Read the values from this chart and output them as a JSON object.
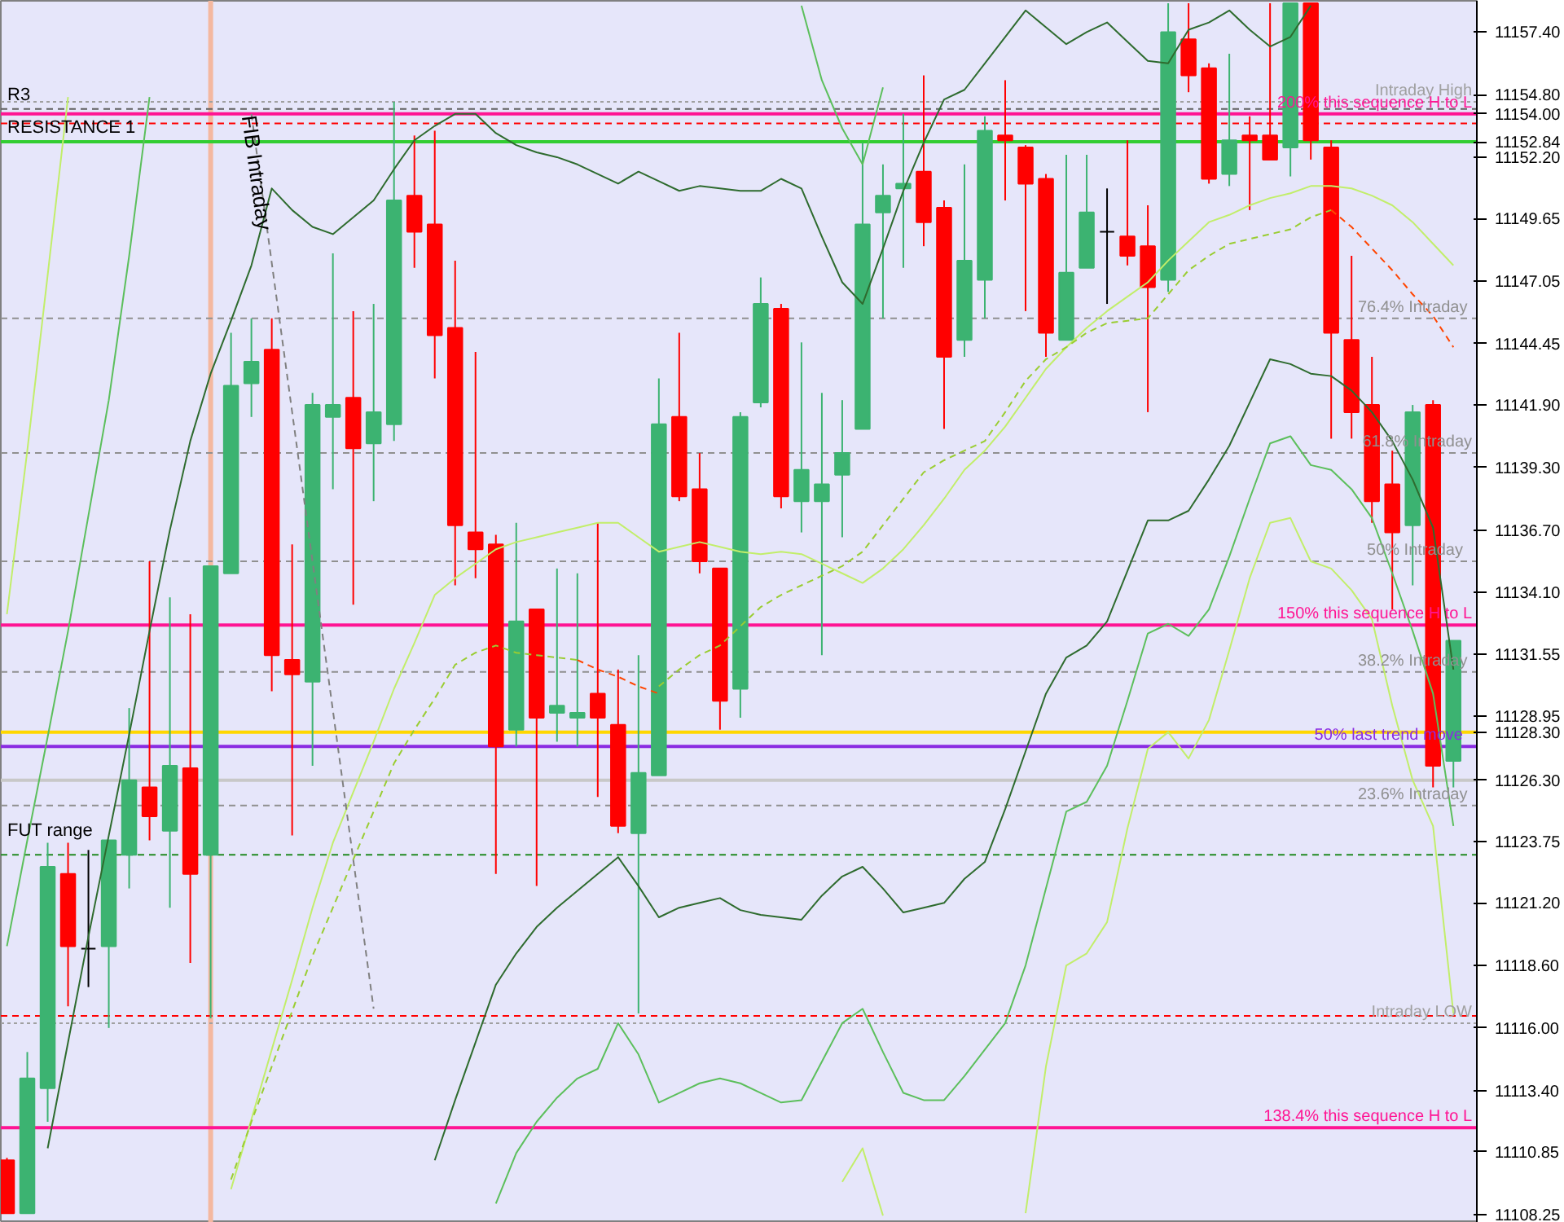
{
  "chart_data": {
    "type": "candlestick",
    "categories": [
      null,
      null,
      null,
      null,
      null,
      null,
      null,
      null,
      null,
      null,
      null,
      null,
      null,
      null,
      null,
      null,
      null,
      null,
      null,
      null,
      null,
      null,
      null,
      null,
      null,
      null,
      null,
      null,
      null,
      null,
      null,
      null,
      null,
      null,
      null,
      null,
      null,
      null,
      null,
      null,
      null,
      null,
      null,
      null,
      null,
      null,
      null,
      null,
      null,
      null,
      null,
      null,
      null,
      null,
      null,
      null,
      null,
      null,
      null,
      null,
      null,
      null,
      null,
      null,
      null,
      null,
      null,
      null,
      null,
      null,
      null,
      null
    ],
    "ohlc": [
      [
        11110.5,
        11110.6,
        11108.3,
        11108.3
      ],
      [
        11108.3,
        11115.0,
        11108.3,
        11113.9
      ],
      [
        11113.5,
        11123.7,
        11112.1,
        11122.7
      ],
      [
        11122.4,
        11123.7,
        11116.9,
        11119.4
      ],
      [
        11119.3,
        11123.4,
        11117.7,
        11119.3
      ],
      [
        11119.4,
        11123.8,
        11116.0,
        11123.8
      ],
      [
        11123.2,
        11129.3,
        11121.8,
        11126.3
      ],
      [
        11126.0,
        11135.4,
        11123.8,
        11124.8
      ],
      [
        11124.2,
        11133.9,
        11121.0,
        11126.9
      ],
      [
        11126.8,
        11133.2,
        11118.7,
        11122.4
      ],
      [
        11123.2,
        11135.2,
        11116.4,
        11135.2
      ],
      [
        11134.9,
        11144.9,
        11134.9,
        11142.7
      ],
      [
        11142.8,
        11145.5,
        11141.4,
        11143.7
      ],
      [
        11144.2,
        11145.5,
        11130.0,
        11131.5
      ],
      [
        11131.3,
        11136.1,
        11124.0,
        11130.7
      ],
      [
        11130.4,
        11142.4,
        11126.9,
        11141.9
      ],
      [
        11141.4,
        11148.2,
        11138.4,
        11141.9
      ],
      [
        11142.2,
        11145.8,
        11133.6,
        11140.1
      ],
      [
        11140.3,
        11146.1,
        11137.9,
        11141.6
      ],
      [
        11141.1,
        11154.5,
        11140.4,
        11150.4
      ],
      [
        11150.6,
        11153.1,
        11147.6,
        11149.1
      ],
      [
        11149.4,
        11153.3,
        11143.0,
        11144.8
      ],
      [
        11145.1,
        11147.9,
        11134.4,
        11136.9
      ],
      [
        11136.6,
        11144.1,
        11134.7,
        11135.9
      ],
      [
        11136.1,
        11136.5,
        11122.4,
        11127.7
      ],
      [
        11128.4,
        11137.0,
        11127.7,
        11132.9
      ],
      [
        11133.4,
        11133.4,
        11121.9,
        11128.9
      ],
      [
        11129.1,
        11135.1,
        11127.9,
        11129.4
      ],
      [
        11128.9,
        11134.9,
        11127.7,
        11129.1
      ],
      [
        11129.9,
        11137.0,
        11125.6,
        11128.9
      ],
      [
        11128.6,
        11130.9,
        11124.1,
        11124.4
      ],
      [
        11124.1,
        11131.5,
        11116.6,
        11126.6
      ],
      [
        11126.5,
        11143.0,
        11126.5,
        11141.1
      ],
      [
        11141.4,
        11144.9,
        11137.9,
        11138.1
      ],
      [
        11138.4,
        11139.9,
        11134.9,
        11135.4
      ],
      [
        11135.1,
        11135.1,
        11128.4,
        11129.6
      ],
      [
        11130.1,
        11141.6,
        11128.9,
        11141.4
      ],
      [
        11142.0,
        11147.2,
        11141.8,
        11146.1
      ],
      [
        11145.9,
        11146.1,
        11137.6,
        11138.1
      ],
      [
        11137.9,
        11144.5,
        11136.6,
        11139.2
      ],
      [
        11137.9,
        11142.4,
        11131.5,
        11138.6
      ],
      [
        11139.0,
        11142.1,
        11136.4,
        11139.9
      ],
      [
        11140.9,
        11152.8,
        11140.9,
        11149.4
      ],
      [
        11149.9,
        11151.9,
        11145.5,
        11150.6
      ],
      [
        11150.9,
        11154.0,
        11147.6,
        11151.1
      ],
      [
        11151.6,
        11155.6,
        11148.5,
        11149.5
      ],
      [
        11150.1,
        11150.4,
        11140.9,
        11143.9
      ],
      [
        11144.6,
        11151.9,
        11143.9,
        11147.9
      ],
      [
        11147.1,
        11153.9,
        11145.5,
        11153.3
      ],
      [
        11153.1,
        11155.4,
        11150.4,
        11152.9
      ],
      [
        11152.6,
        11152.7,
        11145.8,
        11151.1
      ],
      [
        11151.3,
        11151.5,
        11143.9,
        11144.9
      ],
      [
        11144.6,
        11152.3,
        11144.6,
        11147.4
      ],
      [
        11147.6,
        11152.3,
        11147.6,
        11149.9
      ],
      [
        11149.1,
        11150.9,
        11146.1,
        11149.1
      ],
      [
        11148.9,
        11152.9,
        11147.7,
        11148.1
      ],
      [
        11148.5,
        11150.2,
        11141.6,
        11146.8
      ],
      [
        11147.1,
        11158.6,
        11146.6,
        11157.4
      ],
      [
        11157.1,
        11158.6,
        11154.9,
        11155.6
      ],
      [
        11155.9,
        11156.1,
        11151.1,
        11151.3
      ],
      [
        11151.5,
        11156.5,
        11151.0,
        11152.9
      ],
      [
        11153.1,
        11153.9,
        11150.0,
        11152.9
      ],
      [
        11153.1,
        11158.6,
        11152.1,
        11152.1
      ],
      [
        11152.6,
        11158.6,
        11151.4,
        11158.6
      ],
      [
        11158.6,
        11158.6,
        11152.1,
        11152.9
      ],
      [
        11152.6,
        11152.9,
        11140.5,
        11144.9
      ],
      [
        11144.6,
        11148.1,
        11140.5,
        11141.6
      ],
      [
        11141.9,
        11143.9,
        11137.0,
        11137.9
      ],
      [
        11138.6,
        11140.0,
        11133.4,
        11136.6
      ],
      [
        11136.9,
        11141.9,
        11134.4,
        11141.6
      ],
      [
        11141.9,
        11142.1,
        11126.0,
        11126.9
      ],
      [
        11127.1,
        11132.1,
        11126.0,
        11132.1
      ]
    ],
    "colors": [
      "#ff0000",
      "#3cb371",
      "#3cb371",
      "#ff0000",
      "#000000",
      "#3cb371",
      "#3cb371",
      "#ff0000",
      "#3cb371",
      "#ff0000",
      "#3cb371",
      "#3cb371",
      "#3cb371",
      "#ff0000",
      "#ff0000",
      "#3cb371",
      "#3cb371",
      "#ff0000",
      "#3cb371",
      "#3cb371",
      "#ff0000",
      "#ff0000",
      "#ff0000",
      "#ff0000",
      "#ff0000",
      "#3cb371",
      "#ff0000",
      "#3cb371",
      "#3cb371",
      "#ff0000",
      "#ff0000",
      "#3cb371",
      "#3cb371",
      "#ff0000",
      "#ff0000",
      "#ff0000",
      "#3cb371",
      "#3cb371",
      "#ff0000",
      "#3cb371",
      "#3cb371",
      "#3cb371",
      "#3cb371",
      "#3cb371",
      "#3cb371",
      "#ff0000",
      "#ff0000",
      "#3cb371",
      "#3cb371",
      "#ff0000",
      "#ff0000",
      "#ff0000",
      "#3cb371",
      "#3cb371",
      "#000000",
      "#ff0000",
      "#ff0000",
      "#3cb371",
      "#ff0000",
      "#ff0000",
      "#3cb371",
      "#ff0000",
      "#ff0000",
      "#3cb371",
      "#ff0000",
      "#ff0000",
      "#ff0000",
      "#ff0000",
      "#ff0000",
      "#3cb371",
      "#ff0000",
      "#3cb371"
    ],
    "series": [
      {
        "type": "line",
        "color": "#2e6b2e",
        "line_style": "solid",
        "values": [
          null,
          null,
          11111.0,
          11115.4,
          11119.8,
          11124.0,
          11128.2,
          11132.5,
          11136.7,
          11140.4,
          11143.2,
          11145.4,
          11147.7,
          11150.9,
          11150.0,
          11149.3,
          11149.0,
          11149.7,
          11150.4,
          11151.7,
          11152.9,
          11153.5,
          11154.0,
          11154.0,
          11153.2,
          11152.7,
          11152.4,
          11152.2,
          11151.9,
          11151.5,
          11151.1,
          11151.6,
          11151.2,
          11150.8,
          11151.0,
          11150.9,
          11150.8,
          11150.8,
          11151.3,
          11150.9,
          11148.9,
          11147.0,
          11146.1,
          11148.4,
          11150.8,
          11152.8,
          11154.6,
          11155.0,
          11156.1,
          11157.2,
          11158.3,
          11157.6,
          11156.9,
          11157.4,
          11157.8,
          11157.0,
          11156.2,
          11156.1,
          11157.5,
          11157.8,
          11158.3,
          11157.5,
          11156.8,
          11157.2,
          11158.5,
          null,
          null,
          null,
          null,
          null,
          null,
          null
        ]
      },
      {
        "type": "line",
        "color": "#2e6b2e",
        "line_style": "solid",
        "values": [
          null,
          null,
          null,
          null,
          null,
          null,
          null,
          null,
          null,
          null,
          null,
          null,
          null,
          null,
          null,
          null,
          null,
          null,
          null,
          null,
          null,
          11110.5,
          11113.0,
          11115.4,
          11117.8,
          11119.1,
          11120.2,
          11121.0,
          11121.7,
          11122.4,
          11123.1,
          11121.9,
          11120.6,
          11121.0,
          11121.2,
          11121.4,
          11120.9,
          11120.7,
          11120.6,
          11120.5,
          11121.5,
          11122.3,
          11122.7,
          11121.8,
          11120.8,
          11121.0,
          11121.2,
          11122.2,
          11122.9,
          11125.1,
          11127.5,
          11129.9,
          11131.4,
          11131.9,
          11132.9,
          11135.0,
          11137.1,
          11137.1,
          11137.5,
          11138.8,
          11140.2,
          11142.0,
          11143.8,
          11143.6,
          11143.2,
          11143.1,
          11142.5,
          11141.6,
          11140.4,
          11138.8,
          11136.8,
          11130.9
        ]
      },
      {
        "type": "line",
        "color": "#5cbf5c",
        "line_style": "solid",
        "values": [
          11119.4,
          11123.8,
          11128.1,
          11132.5,
          11137.3,
          11142.1,
          11148.1,
          11154.7,
          null,
          null,
          null,
          null,
          null,
          null,
          null,
          null,
          null,
          null,
          null,
          null,
          null,
          null,
          null,
          null,
          null,
          null,
          null,
          null,
          null,
          null,
          null,
          null,
          null,
          null,
          null,
          null,
          null,
          null,
          null,
          11158.5,
          11155.4,
          11153.4,
          11151.9,
          11155.1,
          null,
          null,
          null,
          null,
          null,
          null,
          null,
          null,
          null,
          null,
          null,
          null,
          null,
          null,
          null,
          null,
          null,
          null,
          null,
          null,
          null,
          null,
          null,
          null,
          null,
          null,
          null,
          null
        ]
      },
      {
        "type": "line",
        "color": "#5cbf5c",
        "line_style": "solid",
        "values": [
          null,
          null,
          null,
          null,
          null,
          null,
          null,
          null,
          null,
          null,
          null,
          null,
          null,
          null,
          null,
          null,
          null,
          null,
          null,
          null,
          null,
          null,
          null,
          null,
          11108.7,
          11110.8,
          11112.1,
          11113.1,
          11113.9,
          11114.3,
          11116.2,
          11114.9,
          11112.9,
          11113.3,
          11113.7,
          11113.9,
          11113.7,
          11113.3,
          11112.9,
          11113.0,
          11114.6,
          11116.2,
          11116.8,
          11115.0,
          11113.3,
          11113.0,
          11113.0,
          11114.0,
          11115.1,
          11116.2,
          11118.6,
          11121.8,
          11125.0,
          11125.4,
          11126.9,
          11129.6,
          11132.4,
          11132.8,
          11132.3,
          11133.4,
          11135.6,
          11138.0,
          11140.3,
          11140.6,
          11139.4,
          11139.2,
          11138.4,
          11137.2,
          11134.9,
          11132.5,
          11129.9,
          11124.4
        ]
      },
      {
        "type": "line",
        "color": "#c2ee6a",
        "line_style": "solid",
        "values": [
          11133.2,
          11140.0,
          11147.3,
          11154.7,
          null,
          null,
          null,
          null,
          null,
          null,
          null,
          null,
          null,
          null,
          null,
          null,
          null,
          null,
          null,
          null,
          null,
          null,
          null,
          null,
          null,
          null,
          null,
          null,
          null,
          null,
          null,
          null,
          null,
          null,
          null,
          null,
          null,
          null,
          null,
          null,
          null,
          null,
          null,
          null,
          null,
          null,
          null,
          null,
          null,
          null,
          null,
          null,
          null,
          null,
          null,
          null,
          null,
          null,
          null,
          null,
          null,
          null,
          null,
          null,
          null,
          null,
          null,
          null,
          null,
          null,
          null,
          null
        ]
      },
      {
        "type": "line",
        "color": "#c2ee6a",
        "line_style": "solid",
        "values": [
          null,
          null,
          null,
          null,
          null,
          null,
          null,
          null,
          null,
          null,
          null,
          null,
          null,
          null,
          null,
          null,
          null,
          null,
          null,
          null,
          null,
          null,
          null,
          null,
          null,
          null,
          null,
          null,
          null,
          null,
          null,
          null,
          null,
          null,
          null,
          null,
          null,
          null,
          null,
          null,
          null,
          11109.6,
          11111.0,
          11108.2,
          null,
          null,
          null,
          null,
          null,
          null,
          11108.3,
          11114.4,
          11118.6,
          11119.1,
          11120.4,
          11124.3,
          11127.6,
          11128.3,
          11127.2,
          11128.8,
          11131.7,
          11134.7,
          11137.0,
          11137.2,
          11135.4,
          11135.1,
          11134.2,
          11133.0,
          11129.4,
          11126.3,
          11124.4,
          11116.6
        ]
      },
      {
        "type": "line",
        "color": "#c2ee6a",
        "line_style": "solid",
        "values": [
          null,
          null,
          null,
          null,
          null,
          null,
          null,
          null,
          null,
          null,
          null,
          11109.3,
          11112.2,
          11115.1,
          11118.0,
          11121.0,
          11123.7,
          11125.8,
          11127.9,
          11130.1,
          11132.0,
          11134.0,
          11134.7,
          11135.3,
          11135.9,
          11136.2,
          11136.4,
          11136.6,
          11136.8,
          11137.0,
          11137.0,
          11136.4,
          11135.8,
          11136.0,
          11136.2,
          11136.0,
          11135.8,
          11135.7,
          11135.8,
          11135.7,
          11135.3,
          11134.9,
          11134.5,
          11135.1,
          11135.9,
          11136.9,
          11138.0,
          11139.2,
          11140.0,
          11141.0,
          11142.2,
          11143.4,
          11144.3,
          11145.1,
          11145.8,
          11146.4,
          11147.0,
          11147.9,
          11148.7,
          11149.5,
          11149.8,
          11150.2,
          11150.5,
          11150.7,
          11151.0,
          11151.0,
          11150.9,
          11150.6,
          11150.2,
          11149.5,
          11148.6,
          11147.7
        ]
      },
      {
        "type": "line",
        "color": "#9acd32",
        "line_style": "dashed",
        "values": [
          null,
          null,
          null,
          null,
          null,
          null,
          null,
          null,
          null,
          null,
          null,
          11109.7,
          11112.1,
          11114.4,
          11116.7,
          11119.0,
          11121.0,
          11123.0,
          11125.0,
          11127.0,
          11128.4,
          11129.7,
          11131.1,
          11131.6,
          11131.9,
          11131.6,
          11131.5,
          11131.4,
          11131.3,
          null,
          null,
          null,
          11130.2,
          11130.9,
          11131.5,
          11131.9,
          11132.7,
          11133.5,
          11134.0,
          11134.4,
          11134.8,
          11135.2,
          11135.8,
          11136.9,
          11138.0,
          11139.1,
          11139.6,
          11140.0,
          11140.4,
          11141.6,
          11142.9,
          11143.8,
          11144.3,
          11144.9,
          11145.3,
          11145.4,
          11145.5,
          11146.5,
          11147.5,
          11148.1,
          11148.6,
          11148.8,
          11149.0,
          11149.2,
          11149.7,
          11150.0,
          null,
          null,
          null,
          null,
          null,
          null
        ]
      },
      {
        "type": "line",
        "color": "#ff4500",
        "line_style": "dashed",
        "values": [
          null,
          null,
          null,
          null,
          null,
          null,
          null,
          null,
          null,
          null,
          null,
          null,
          null,
          null,
          null,
          null,
          null,
          null,
          null,
          null,
          null,
          null,
          null,
          null,
          null,
          null,
          null,
          null,
          11131.3,
          11130.9,
          11130.6,
          11130.2,
          11129.9,
          null,
          null,
          null,
          null,
          null,
          null,
          null,
          null,
          null,
          null,
          null,
          null,
          null,
          null,
          null,
          null,
          null,
          null,
          null,
          null,
          null,
          null,
          null,
          null,
          null,
          null,
          null,
          null,
          null,
          null,
          null,
          null,
          11150.0,
          11149.3,
          11148.4,
          11147.5,
          11146.5,
          11145.6,
          11144.3
        ]
      },
      {
        "type": "line",
        "name": "FIB Intraday",
        "color": "#808080",
        "line_style": "dashed",
        "values": [
          null,
          null,
          null,
          null,
          null,
          null,
          null,
          null,
          null,
          null,
          null,
          null,
          11154.0,
          11147.8,
          11141.6,
          11135.4,
          11129.2,
          11123.0,
          11116.8,
          null,
          null,
          null,
          null,
          null,
          null,
          null,
          null,
          null,
          null,
          null,
          null,
          null,
          null,
          null,
          null,
          null,
          null,
          null,
          null,
          null,
          null,
          null,
          null,
          null,
          null,
          null,
          null,
          null,
          null,
          null,
          null,
          null,
          null,
          null,
          null,
          null,
          null,
          null,
          null,
          null,
          null,
          null,
          null,
          null,
          null,
          null,
          null,
          null,
          null,
          null,
          null,
          null
        ]
      }
    ],
    "ylim": [
      11107.9,
      11158.7
    ],
    "yticks": [
      {
        "value": 11157.4,
        "label": "11157.40"
      },
      {
        "value": 11154.8,
        "label": "11154.80"
      },
      {
        "value": 11154.0,
        "label": "11154.00"
      },
      {
        "value": 11152.84,
        "label": "11152.84"
      },
      {
        "value": 11152.2,
        "label": "11152.20"
      },
      {
        "value": 11149.65,
        "label": "11149.65"
      },
      {
        "value": 11147.05,
        "label": "11147.05"
      },
      {
        "value": 11144.45,
        "label": "11144.45"
      },
      {
        "value": 11141.9,
        "label": "11141.90"
      },
      {
        "value": 11139.3,
        "label": "11139.30"
      },
      {
        "value": 11136.7,
        "label": "11136.70"
      },
      {
        "value": 11134.1,
        "label": "11134.10"
      },
      {
        "value": 11131.55,
        "label": "11131.55"
      },
      {
        "value": 11128.95,
        "label": "11128.95"
      },
      {
        "value": 11128.3,
        "label": "11128.30"
      },
      {
        "value": 11126.3,
        "label": "11126.30"
      },
      {
        "value": 11123.75,
        "label": "11123.75"
      },
      {
        "value": 11121.2,
        "label": "11121.20"
      },
      {
        "value": 11118.6,
        "label": "11118.60"
      },
      {
        "value": 11116.0,
        "label": "11116.00"
      },
      {
        "value": 11113.4,
        "label": "11113.40"
      },
      {
        "value": 11110.85,
        "label": "11110.85"
      },
      {
        "value": 11108.25,
        "label": "11108.25"
      }
    ],
    "tick_labels": "y",
    "ref_lines": [
      {
        "axis": "y",
        "value": 11154.5,
        "label": "Intraday High",
        "color": "#a0a0a0",
        "line_style": "dotted"
      },
      {
        "axis": "y",
        "value": 11154.2,
        "color": "#606060",
        "line_style": "dashed"
      },
      {
        "axis": "y",
        "value": 11154.0,
        "label": "200% this sequence H to L",
        "color": "#ff1493",
        "line_style": "solid"
      },
      {
        "axis": "y",
        "value": 11153.6,
        "color": "#ff0000",
        "line_style": "dashed"
      },
      {
        "axis": "y",
        "value": 11152.84,
        "color": "#32cd32",
        "line_style": "solid"
      },
      {
        "axis": "y",
        "value": 11145.5,
        "label": "76.4%  Intraday",
        "color": "#909090",
        "line_style": "dashed"
      },
      {
        "axis": "y",
        "value": 11139.9,
        "label": "61.8% Intraday",
        "color": "#909090",
        "line_style": "dashed"
      },
      {
        "axis": "y",
        "value": 11135.4,
        "label": "50%   Intraday",
        "color": "#909090",
        "line_style": "dashed"
      },
      {
        "axis": "y",
        "value": 11132.75,
        "label": "150% this sequence H to L",
        "color": "#ff1493",
        "line_style": "solid"
      },
      {
        "axis": "y",
        "value": 11130.8,
        "label": "38.2%  Intraday",
        "color": "#909090",
        "line_style": "dashed"
      },
      {
        "axis": "y",
        "value": 11128.3,
        "color": "#ffd700",
        "line_style": "solid"
      },
      {
        "axis": "y",
        "value": 11127.7,
        "label": "50%   last trend move",
        "color": "#8a2be2",
        "line_style": "solid"
      },
      {
        "axis": "y",
        "value": 11126.3,
        "color": "#c8c8c8",
        "line_style": "solid"
      },
      {
        "axis": "y",
        "value": 11125.25,
        "label": "23.6%  Intraday",
        "color": "#909090",
        "line_style": "dashed"
      },
      {
        "axis": "y",
        "value": 11123.2,
        "color": "#228b22",
        "line_style": "dashed"
      },
      {
        "axis": "y",
        "value": 11116.5,
        "color": "#ff0000",
        "line_style": "dashed"
      },
      {
        "axis": "y",
        "value": 11116.2,
        "label": "Intraday LOW",
        "color": "#a0a0a0",
        "line_style": "dotted"
      },
      {
        "axis": "y",
        "value": 11111.85,
        "label": "138.4% this sequence H to L",
        "color": "#ff1493",
        "line_style": "solid"
      }
    ],
    "annotations": [
      {
        "text": "R3",
        "y": 11154.3
      },
      {
        "text": "RESISTANCE 1",
        "y": 11152.95
      },
      {
        "text": "FUT range",
        "y": 11123.7
      }
    ]
  }
}
